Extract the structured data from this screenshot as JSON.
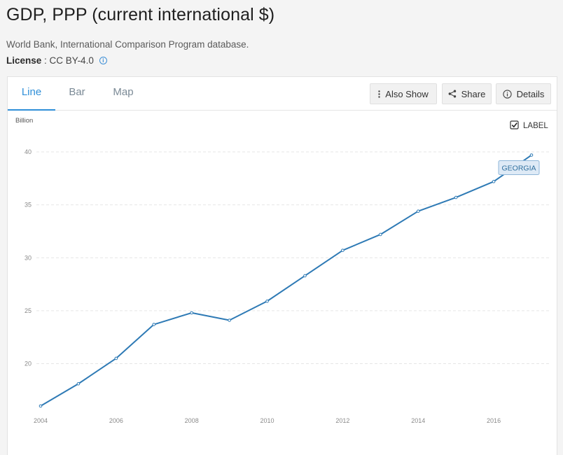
{
  "header": {
    "title": "GDP, PPP (current international $)",
    "source": "World Bank, International Comparison Program database.",
    "license_label": "License",
    "license_sep": " : ",
    "license_value": "CC BY-4.0"
  },
  "tabs": [
    {
      "label": "Line",
      "active": true
    },
    {
      "label": "Bar",
      "active": false
    },
    {
      "label": "Map",
      "active": false
    }
  ],
  "toolbar": {
    "also_show": "Also Show",
    "share": "Share",
    "details": "Details"
  },
  "colors": {
    "accent": "#2f8fd8",
    "series": "#2e7ab5",
    "tag_bg": "#deeaf6"
  },
  "chart_data": {
    "type": "line",
    "unit_label": "Billion",
    "x": [
      2004,
      2005,
      2006,
      2007,
      2008,
      2009,
      2010,
      2011,
      2012,
      2013,
      2014,
      2015,
      2016,
      2017
    ],
    "series": [
      {
        "name": "GEORGIA",
        "values": [
          16.0,
          18.1,
          20.5,
          23.7,
          24.8,
          24.1,
          25.9,
          28.3,
          30.7,
          32.2,
          34.4,
          35.7,
          37.2,
          39.7
        ]
      }
    ],
    "xticks": [
      2004,
      2006,
      2008,
      2010,
      2012,
      2014,
      2016
    ],
    "yticks": [
      20,
      25,
      30,
      35,
      40
    ],
    "xlim": [
      2004,
      2017
    ],
    "ylim": [
      16,
      40
    ],
    "legend": {
      "label": "LABEL",
      "checked": true
    }
  }
}
